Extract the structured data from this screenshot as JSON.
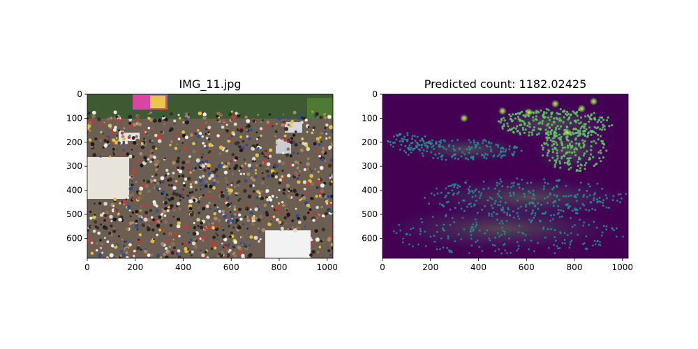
{
  "figure": {
    "background": "#ffffff"
  },
  "chart_data": [
    {
      "type": "image",
      "title": "IMG_11.jpg",
      "xlim": [
        0,
        1024
      ],
      "ylim": [
        0,
        683
      ],
      "y_inverted": true,
      "xticks": [
        0,
        200,
        400,
        600,
        800,
        1000
      ],
      "yticks": [
        0,
        100,
        200,
        300,
        400,
        500,
        600
      ],
      "content": "crowd-photo"
    },
    {
      "type": "heatmap",
      "title": "Predicted count: 1182.02425",
      "predicted_count": 1182.02425,
      "colormap": "viridis",
      "xlim": [
        0,
        1024
      ],
      "ylim": [
        0,
        683
      ],
      "y_inverted": true,
      "xticks": [
        0,
        200,
        400,
        600,
        800,
        1000
      ],
      "yticks": [
        0,
        100,
        200,
        300,
        400,
        500,
        600
      ],
      "colors": {
        "low": "#440154",
        "mid": "#21918c",
        "high": "#5ec962",
        "peak": "#fde725"
      }
    }
  ]
}
